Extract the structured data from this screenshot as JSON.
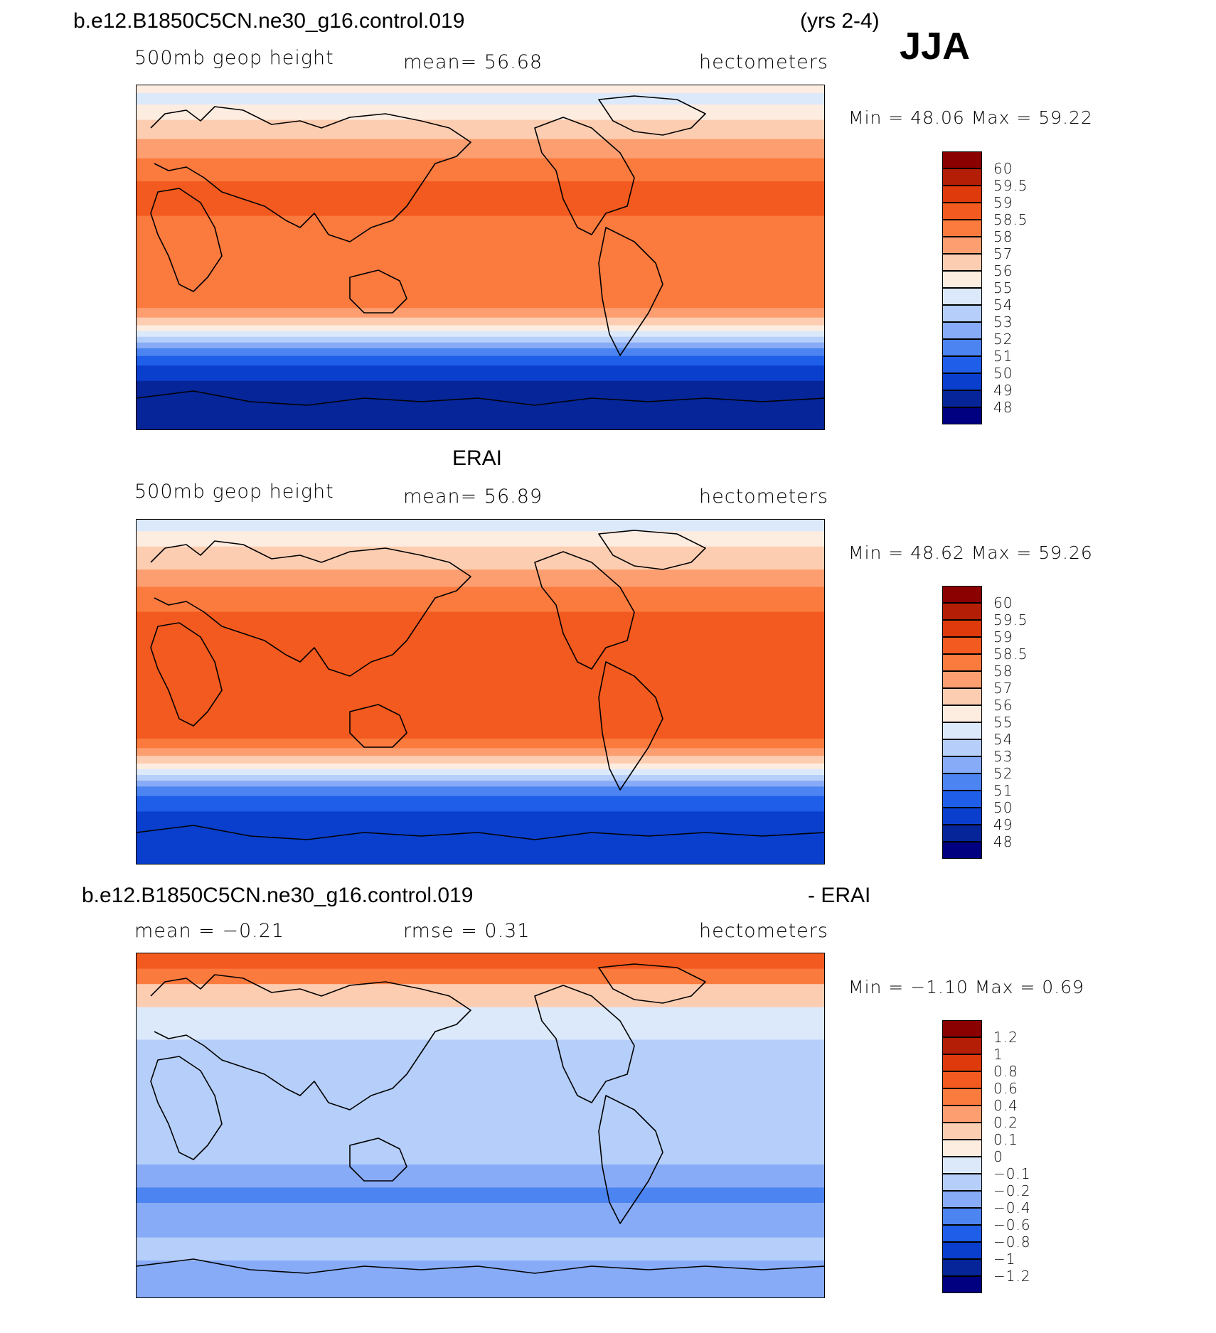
{
  "header": {
    "case_name": "b.e12.B1850C5CN.ne30_g16.control.019",
    "years": "(yrs 2-4)",
    "season": "JJA"
  },
  "panels": [
    {
      "id": "model",
      "title": "",
      "variable": "500mb geop height",
      "stat": "mean=   56.68",
      "units": "hectometers",
      "minmax_label": "Min =    48.06  Max =    59.22",
      "colorbar": {
        "labels": [
          "60",
          "59.5",
          "59",
          "58.5",
          "58",
          "57",
          "56",
          "55",
          "54",
          "53",
          "52",
          "51",
          "50",
          "49",
          "48"
        ],
        "colors": [
          "#8b0000",
          "#b51e06",
          "#de3a0c",
          "#f25a1f",
          "#fb7a3e",
          "#fc9e70",
          "#fdcdb1",
          "#fdece0",
          "#dbe9fb",
          "#b5cffa",
          "#87abf6",
          "#4c84f1",
          "#1f5ee8",
          "#0a3fcd",
          "#052598",
          "#000080"
        ]
      },
      "bands": [
        {
          "lat_top": 90,
          "lat_bottom": 86,
          "color": "#fdece0"
        },
        {
          "lat_top": 86,
          "lat_bottom": 80,
          "color": "#dbe9fb"
        },
        {
          "lat_top": 80,
          "lat_bottom": 72,
          "color": "#fdece0"
        },
        {
          "lat_top": 72,
          "lat_bottom": 62,
          "color": "#fdcdb1"
        },
        {
          "lat_top": 62,
          "lat_bottom": 52,
          "color": "#fc9e70"
        },
        {
          "lat_top": 52,
          "lat_bottom": 40,
          "color": "#fb7a3e"
        },
        {
          "lat_top": 40,
          "lat_bottom": 22,
          "color": "#f25a1f"
        },
        {
          "lat_top": 22,
          "lat_bottom": -26,
          "color": "#fb7a3e"
        },
        {
          "lat_top": -26,
          "lat_bottom": -31,
          "color": "#fc9e70"
        },
        {
          "lat_top": -31,
          "lat_bottom": -35,
          "color": "#fdcdb1"
        },
        {
          "lat_top": -35,
          "lat_bottom": -38,
          "color": "#fdece0"
        },
        {
          "lat_top": -38,
          "lat_bottom": -41,
          "color": "#dbe9fb"
        },
        {
          "lat_top": -41,
          "lat_bottom": -44,
          "color": "#b5cffa"
        },
        {
          "lat_top": -44,
          "lat_bottom": -47,
          "color": "#87abf6"
        },
        {
          "lat_top": -47,
          "lat_bottom": -51,
          "color": "#4c84f1"
        },
        {
          "lat_top": -51,
          "lat_bottom": -56,
          "color": "#1f5ee8"
        },
        {
          "lat_top": -56,
          "lat_bottom": -64,
          "color": "#0a3fcd"
        },
        {
          "lat_top": -64,
          "lat_bottom": -90,
          "color": "#052598"
        }
      ]
    },
    {
      "id": "obs",
      "title": "ERAI",
      "variable": "500mb geop height",
      "stat": "mean=   56.89",
      "units": "hectometers",
      "minmax_label": "Min =    48.62  Max =    59.26",
      "colorbar": {
        "labels": [
          "60",
          "59.5",
          "59",
          "58.5",
          "58",
          "57",
          "56",
          "55",
          "54",
          "53",
          "52",
          "51",
          "50",
          "49",
          "48"
        ],
        "colors": [
          "#8b0000",
          "#b51e06",
          "#de3a0c",
          "#f25a1f",
          "#fb7a3e",
          "#fc9e70",
          "#fdcdb1",
          "#fdece0",
          "#dbe9fb",
          "#b5cffa",
          "#87abf6",
          "#4c84f1",
          "#1f5ee8",
          "#0a3fcd",
          "#052598",
          "#000080"
        ]
      },
      "bands": [
        {
          "lat_top": 90,
          "lat_bottom": 84,
          "color": "#dbe9fb"
        },
        {
          "lat_top": 84,
          "lat_bottom": 76,
          "color": "#fdece0"
        },
        {
          "lat_top": 76,
          "lat_bottom": 64,
          "color": "#fdcdb1"
        },
        {
          "lat_top": 64,
          "lat_bottom": 55,
          "color": "#fc9e70"
        },
        {
          "lat_top": 55,
          "lat_bottom": 42,
          "color": "#fb7a3e"
        },
        {
          "lat_top": 42,
          "lat_bottom": -24,
          "color": "#f25a1f"
        },
        {
          "lat_top": -24,
          "lat_bottom": -29,
          "color": "#fb7a3e"
        },
        {
          "lat_top": -29,
          "lat_bottom": -33,
          "color": "#fc9e70"
        },
        {
          "lat_top": -33,
          "lat_bottom": -37,
          "color": "#fdcdb1"
        },
        {
          "lat_top": -37,
          "lat_bottom": -40,
          "color": "#fdece0"
        },
        {
          "lat_top": -40,
          "lat_bottom": -43,
          "color": "#dbe9fb"
        },
        {
          "lat_top": -43,
          "lat_bottom": -46,
          "color": "#b5cffa"
        },
        {
          "lat_top": -46,
          "lat_bottom": -49,
          "color": "#87abf6"
        },
        {
          "lat_top": -49,
          "lat_bottom": -54,
          "color": "#4c84f1"
        },
        {
          "lat_top": -54,
          "lat_bottom": -62,
          "color": "#1f5ee8"
        },
        {
          "lat_top": -62,
          "lat_bottom": -90,
          "color": "#0a3fcd"
        }
      ]
    },
    {
      "id": "diff",
      "title": "b.e12.B1850C5CN.ne30_g16.control.019",
      "title_right": "- ERAI",
      "variable": "mean =   −0.21",
      "stat": "rmse =    0.31",
      "units": "hectometers",
      "minmax_label": "Min =   −1.10  Max =     0.69",
      "colorbar": {
        "labels": [
          "1.2",
          "1",
          "0.8",
          "0.6",
          "0.4",
          "0.2",
          "0.1",
          "0",
          "−0.1",
          "−0.2",
          "−0.4",
          "−0.6",
          "−0.8",
          "−1",
          "−1.2"
        ],
        "colors": [
          "#8b0000",
          "#b51e06",
          "#de3a0c",
          "#f25a1f",
          "#fb7a3e",
          "#fc9e70",
          "#fdcdb1",
          "#fdece0",
          "#dbe9fb",
          "#b5cffa",
          "#87abf6",
          "#4c84f1",
          "#1f5ee8",
          "#0a3fcd",
          "#052598",
          "#000080"
        ]
      },
      "bands": [
        {
          "lat_top": 90,
          "lat_bottom": 82,
          "color": "#f25a1f"
        },
        {
          "lat_top": 82,
          "lat_bottom": 74,
          "color": "#fb7a3e"
        },
        {
          "lat_top": 74,
          "lat_bottom": 62,
          "color": "#fdcdb1"
        },
        {
          "lat_top": 62,
          "lat_bottom": 45,
          "color": "#dbe9fb"
        },
        {
          "lat_top": 45,
          "lat_bottom": -20,
          "color": "#b5cffa"
        },
        {
          "lat_top": -20,
          "lat_bottom": -32,
          "color": "#87abf6"
        },
        {
          "lat_top": -32,
          "lat_bottom": -40,
          "color": "#4c84f1"
        },
        {
          "lat_top": -40,
          "lat_bottom": -58,
          "color": "#87abf6"
        },
        {
          "lat_top": -58,
          "lat_bottom": -70,
          "color": "#b5cffa"
        },
        {
          "lat_top": -70,
          "lat_bottom": -90,
          "color": "#87abf6"
        }
      ]
    }
  ]
}
